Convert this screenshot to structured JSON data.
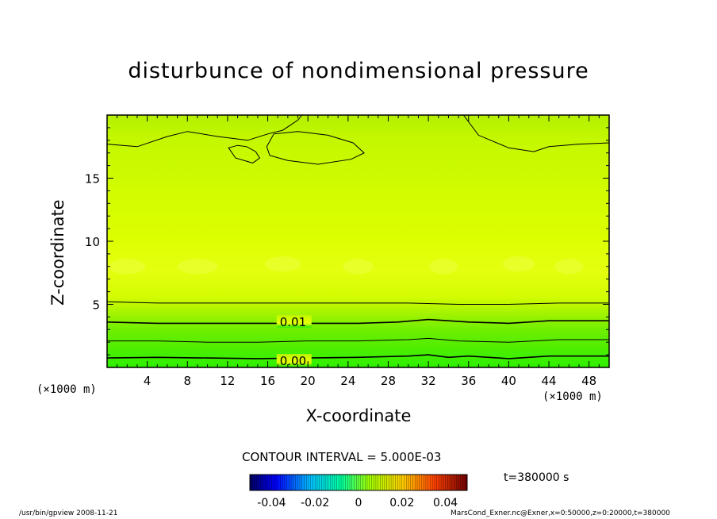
{
  "chart_data": {
    "type": "heatmap",
    "title": "disturbunce of nondimensional pressure",
    "xlabel": "X-coordinate",
    "ylabel": "Z-coordinate",
    "x_unit_label": "(×1000 m)",
    "x_ticks": [
      "4",
      "8",
      "12",
      "16",
      "20",
      "24",
      "28",
      "32",
      "36",
      "40",
      "44",
      "48"
    ],
    "y_ticks": [
      "5",
      "10",
      "15"
    ],
    "xlim": [
      0,
      50
    ],
    "ylim": [
      0,
      20
    ],
    "contour_interval": "CONTOUR INTERVAL = 5.000E-03",
    "contour_labels": [
      {
        "text": "0.01",
        "x": 17.2,
        "z": 3.6
      },
      {
        "text": "0.00",
        "x": 17.2,
        "z": 0.5
      }
    ],
    "contours": [
      {
        "level": 0.0,
        "points": [
          [
            0,
            0.75
          ],
          [
            5,
            0.8
          ],
          [
            10,
            0.75
          ],
          [
            15,
            0.7
          ],
          [
            20,
            0.75
          ],
          [
            25,
            0.8
          ],
          [
            30,
            0.9
          ],
          [
            32,
            1.0
          ],
          [
            34,
            0.8
          ],
          [
            36,
            0.9
          ],
          [
            40,
            0.7
          ],
          [
            44,
            0.9
          ],
          [
            48,
            0.9
          ],
          [
            50,
            0.9
          ]
        ]
      },
      {
        "level": 0.005,
        "points": [
          [
            0,
            2.1
          ],
          [
            5,
            2.1
          ],
          [
            10,
            2.0
          ],
          [
            15,
            2.0
          ],
          [
            20,
            2.1
          ],
          [
            25,
            2.1
          ],
          [
            30,
            2.2
          ],
          [
            32,
            2.3
          ],
          [
            35,
            2.1
          ],
          [
            40,
            2.0
          ],
          [
            45,
            2.2
          ],
          [
            50,
            2.2
          ]
        ]
      },
      {
        "level": 0.01,
        "points": [
          [
            0,
            3.6
          ],
          [
            5,
            3.5
          ],
          [
            10,
            3.5
          ],
          [
            15,
            3.5
          ],
          [
            20,
            3.5
          ],
          [
            25,
            3.5
          ],
          [
            29,
            3.6
          ],
          [
            32,
            3.8
          ],
          [
            36,
            3.6
          ],
          [
            40,
            3.5
          ],
          [
            44,
            3.7
          ],
          [
            48,
            3.7
          ],
          [
            50,
            3.7
          ]
        ]
      },
      {
        "level": 0.015,
        "points": [
          [
            0,
            5.2
          ],
          [
            5,
            5.1
          ],
          [
            10,
            5.1
          ],
          [
            15,
            5.1
          ],
          [
            20,
            5.1
          ],
          [
            25,
            5.1
          ],
          [
            30,
            5.1
          ],
          [
            35,
            5.0
          ],
          [
            40,
            5.0
          ],
          [
            45,
            5.1
          ],
          [
            50,
            5.1
          ]
        ]
      },
      {
        "level": -0.005,
        "points": [
          [
            0,
            17.7
          ],
          [
            3,
            17.5
          ],
          [
            6,
            18.3
          ],
          [
            8,
            18.7
          ],
          [
            11,
            18.3
          ],
          [
            14,
            18.0
          ],
          [
            16,
            18.5
          ],
          [
            17.5,
            18.8
          ],
          [
            19,
            19.6
          ],
          [
            19.4,
            20
          ]
        ]
      },
      {
        "level": -0.005,
        "points": [
          [
            35.5,
            20
          ],
          [
            37,
            18.4
          ],
          [
            40,
            17.4
          ],
          [
            42.5,
            17.1
          ],
          [
            44,
            17.5
          ],
          [
            47,
            17.7
          ],
          [
            50,
            17.8
          ]
        ]
      }
    ],
    "closed_contours": [
      {
        "level": -0.005,
        "points": [
          [
            12.1,
            17.4
          ],
          [
            12.8,
            16.6
          ],
          [
            14.5,
            16.2
          ],
          [
            15.2,
            16.6
          ],
          [
            14.8,
            17.1
          ],
          [
            13.9,
            17.5
          ],
          [
            13.0,
            17.6
          ],
          [
            12.1,
            17.4
          ]
        ]
      },
      {
        "level": -0.005,
        "points": [
          [
            15.9,
            17.5
          ],
          [
            16.6,
            18.5
          ],
          [
            19,
            18.7
          ],
          [
            22,
            18.4
          ],
          [
            24.5,
            17.8
          ],
          [
            25.6,
            17.0
          ],
          [
            24.3,
            16.5
          ],
          [
            21,
            16.1
          ],
          [
            18,
            16.4
          ],
          [
            16.2,
            16.8
          ],
          [
            15.9,
            17.5
          ]
        ]
      }
    ],
    "colorbar": {
      "min": -0.05,
      "max": 0.05,
      "tick_labels": [
        "-0.04",
        "-0.02",
        "0",
        "0.02",
        "0.04"
      ],
      "tick_values": [
        -0.04,
        -0.02,
        0,
        0.02,
        0.04
      ]
    },
    "colors": {
      "field_top": "#c8ff00",
      "field_mid": "#e0ff00",
      "field_low": "#94f000",
      "field_bottom": "#30f000",
      "plot_bg": "#ccff00"
    }
  },
  "labels": {
    "time": "t=380000 s",
    "footer_left": "/usr/bin/gpview  2008-11-21",
    "footer_right": "MarsCond_Exner.nc@Exner,x=0:50000,z=0:20000,t=380000"
  }
}
